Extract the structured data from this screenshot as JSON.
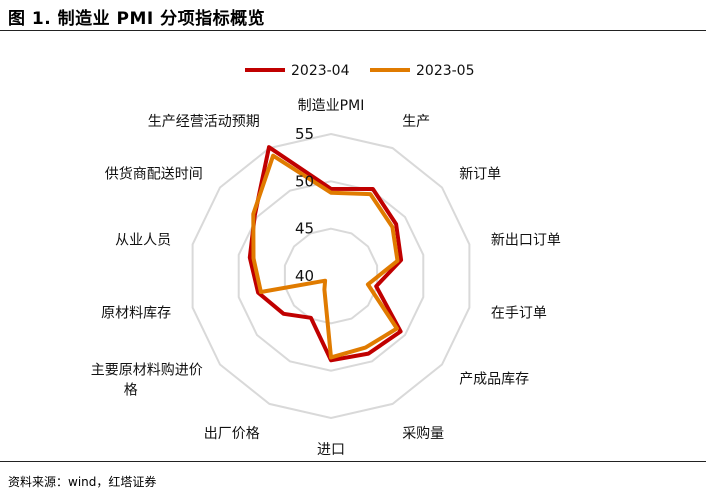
{
  "title": "图 1. 制造业 PMI 分项指标概览",
  "source": "资料来源：wind，红塔证券",
  "chart_data": {
    "type": "radar",
    "categories": [
      "制造业PMI",
      "生产",
      "新订单",
      "新出口订单",
      "在手订单",
      "产成品库存",
      "采购量",
      "进口",
      "出厂价格",
      "主要原材料购进价格",
      "原材料库存",
      "从业人员",
      "供货商配送时间",
      "生产经营活动预期"
    ],
    "series": [
      {
        "name": "2023-04",
        "color": "#c00000",
        "values": [
          49.2,
          50.2,
          48.8,
          47.6,
          44.9,
          49.4,
          49.1,
          48.9,
          44.9,
          46.4,
          47.9,
          48.8,
          50.3,
          55.1
        ]
      },
      {
        "name": "2023-05",
        "color": "#e07b00",
        "values": [
          48.8,
          49.6,
          48.3,
          47.2,
          44.0,
          48.9,
          48.4,
          48.6,
          41.6,
          40.8,
          47.6,
          48.4,
          50.5,
          54.1
        ]
      }
    ],
    "rlim": [
      40,
      55
    ],
    "ticks": [
      40,
      45,
      50,
      55
    ],
    "legend_position": "top"
  },
  "colors": {
    "grid": "#d9d9d9"
  }
}
